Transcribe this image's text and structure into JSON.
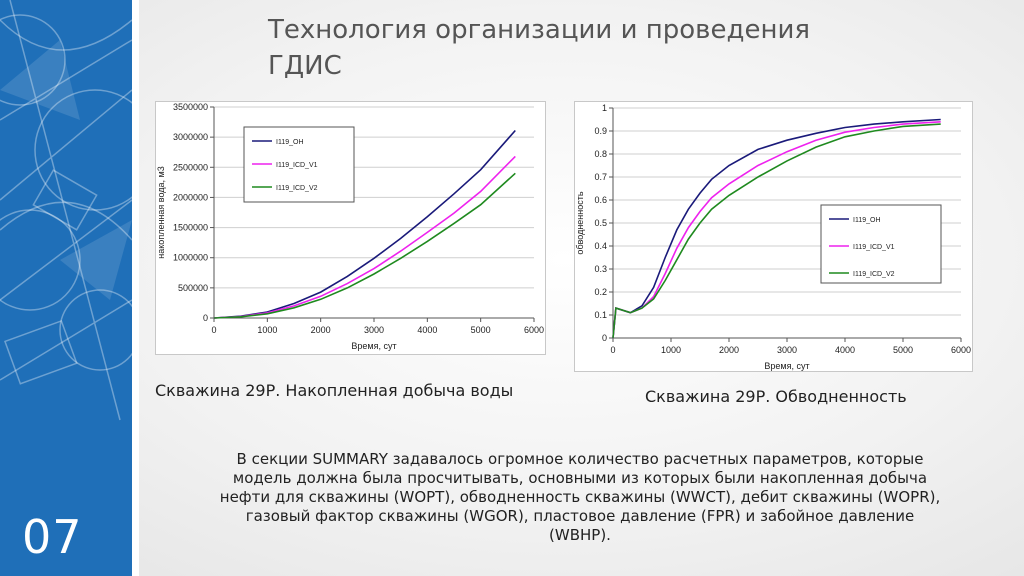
{
  "slide": {
    "title_line1": "Технология организации и проведения",
    "title_line2": "ГДИС",
    "number": "07",
    "accent": "#1f6fb8"
  },
  "captions": {
    "chart1": "Скважина 29Р. Накопленная добыча воды",
    "chart2": "Скважина 29Р. Обводненность"
  },
  "paragraph": "В секции SUMMARY задавалось огромное количество расчетных параметров, которые\nмодель должна была просчитывать, основными из которых были накопленная добыча\nнефти для скважины (WOPT), обводненность скважины (WWCT), дебит скважины (WOPR),\nгазовый фактор скважины (WGOR), пластовое давление (FPR) и забойное давление\n(WBHP).",
  "chart_data": [
    {
      "type": "line",
      "xlabel": "Время, сут",
      "ylabel": "накопленная вода, м3",
      "xlim": [
        0,
        6000
      ],
      "ylim": [
        0,
        3500000
      ],
      "xticks": [
        "0",
        "1000",
        "2000",
        "3000",
        "4000",
        "5000",
        "6000"
      ],
      "yticks": [
        "0",
        "500000",
        "1000000",
        "1500000",
        "2000000",
        "2500000",
        "3000000",
        "3500000"
      ],
      "legend_position": "upper-left",
      "series": [
        {
          "name": "I119_OH",
          "color": "#1a1a7a",
          "x": [
            0,
            500,
            1000,
            1500,
            2000,
            2500,
            3000,
            3500,
            4000,
            4500,
            5000,
            5650
          ],
          "y": [
            0,
            30000,
            100000,
            240000,
            430000,
            690000,
            990000,
            1320000,
            1680000,
            2060000,
            2460000,
            3110000
          ]
        },
        {
          "name": "I119_ICD_V1",
          "color": "#ee22ee",
          "x": [
            0,
            500,
            1000,
            1500,
            2000,
            2500,
            3000,
            3500,
            4000,
            4500,
            5000,
            5650
          ],
          "y": [
            0,
            25000,
            85000,
            200000,
            360000,
            570000,
            820000,
            1110000,
            1420000,
            1740000,
            2100000,
            2680000
          ]
        },
        {
          "name": "I119_ICD_V2",
          "color": "#1f8a1f",
          "x": [
            0,
            500,
            1000,
            1500,
            2000,
            2500,
            3000,
            3500,
            4000,
            4500,
            5000,
            5650
          ],
          "y": [
            0,
            20000,
            70000,
            170000,
            310000,
            500000,
            730000,
            990000,
            1270000,
            1570000,
            1880000,
            2400000
          ]
        }
      ]
    },
    {
      "type": "line",
      "xlabel": "Время, сут",
      "ylabel": "обводненность",
      "xlim": [
        0,
        6000
      ],
      "ylim": [
        0,
        1
      ],
      "xticks": [
        "0",
        "1000",
        "2000",
        "3000",
        "4000",
        "5000",
        "6000"
      ],
      "yticks": [
        "0",
        "0.1",
        "0.2",
        "0.3",
        "0.4",
        "0.5",
        "0.6",
        "0.7",
        "0.8",
        "0.9",
        "1"
      ],
      "legend_position": "lower-right",
      "series": [
        {
          "name": "I119_OH",
          "color": "#1a1a7a",
          "x": [
            0,
            50,
            300,
            500,
            700,
            900,
            1100,
            1300,
            1500,
            1700,
            2000,
            2500,
            3000,
            3500,
            4000,
            4500,
            5000,
            5650
          ],
          "y": [
            0,
            0.13,
            0.11,
            0.14,
            0.22,
            0.35,
            0.47,
            0.56,
            0.63,
            0.69,
            0.75,
            0.82,
            0.86,
            0.89,
            0.915,
            0.93,
            0.94,
            0.95
          ]
        },
        {
          "name": "I119_ICD_V1",
          "color": "#ee22ee",
          "x": [
            0,
            50,
            300,
            500,
            700,
            900,
            1100,
            1300,
            1500,
            1700,
            2000,
            2500,
            3000,
            3500,
            4000,
            4500,
            5000,
            5650
          ],
          "y": [
            0,
            0.13,
            0.11,
            0.13,
            0.18,
            0.28,
            0.39,
            0.48,
            0.55,
            0.61,
            0.67,
            0.75,
            0.81,
            0.86,
            0.895,
            0.915,
            0.93,
            0.94
          ]
        },
        {
          "name": "I119_ICD_V2",
          "color": "#1f8a1f",
          "x": [
            0,
            50,
            300,
            500,
            700,
            900,
            1100,
            1300,
            1500,
            1700,
            2000,
            2500,
            3000,
            3500,
            4000,
            4500,
            5000,
            5650
          ],
          "y": [
            0,
            0.13,
            0.11,
            0.13,
            0.17,
            0.25,
            0.34,
            0.43,
            0.5,
            0.56,
            0.62,
            0.7,
            0.77,
            0.83,
            0.875,
            0.9,
            0.92,
            0.93
          ]
        }
      ]
    }
  ]
}
